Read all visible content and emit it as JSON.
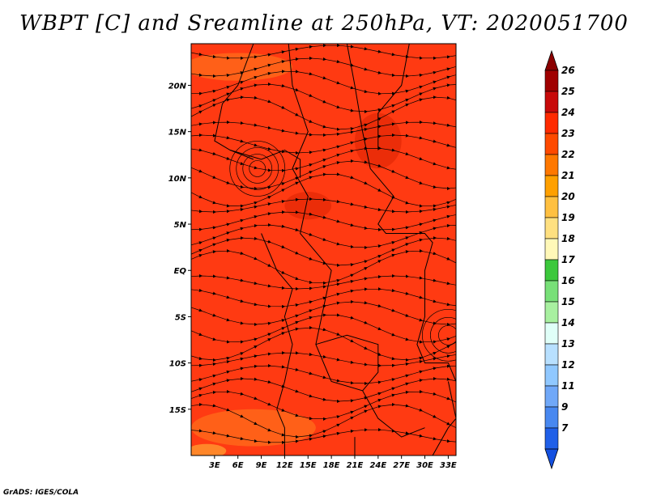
{
  "title": "WBPT [C] and Sreamline at 250hPa, VT: 2020051700",
  "footer": "GrADS: IGES/COLA",
  "map": {
    "lat_range": [
      -20,
      24.5
    ],
    "lon_range": [
      0,
      34
    ],
    "lat_ticks": [
      {
        "value": 20,
        "label": "20N"
      },
      {
        "value": 15,
        "label": "15N"
      },
      {
        "value": 10,
        "label": "10N"
      },
      {
        "value": 5,
        "label": "5N"
      },
      {
        "value": 0,
        "label": "EQ"
      },
      {
        "value": -5,
        "label": "5S"
      },
      {
        "value": -10,
        "label": "10S"
      },
      {
        "value": -15,
        "label": "15S"
      }
    ],
    "lon_ticks": [
      {
        "value": 3,
        "label": "3E"
      },
      {
        "value": 6,
        "label": "6E"
      },
      {
        "value": 9,
        "label": "9E"
      },
      {
        "value": 12,
        "label": "12E"
      },
      {
        "value": 15,
        "label": "15E"
      },
      {
        "value": 18,
        "label": "18E"
      },
      {
        "value": 21,
        "label": "21E"
      },
      {
        "value": 24,
        "label": "24E"
      },
      {
        "value": 27,
        "label": "27E"
      },
      {
        "value": 30,
        "label": "30E"
      },
      {
        "value": 33,
        "label": "33E"
      }
    ],
    "field_colors": {
      "base": "#ff3a12",
      "warm_patch": "#ff6a1a",
      "hot_patch": "#e62a08"
    }
  },
  "colorbar": {
    "labels": [
      "26",
      "25",
      "24",
      "23",
      "22",
      "21",
      "20",
      "19",
      "18",
      "17",
      "16",
      "15",
      "14",
      "13",
      "12",
      "11",
      "9",
      "7"
    ],
    "colors": [
      "#a00000",
      "#c80a0a",
      "#ff2a00",
      "#ff4a00",
      "#ff7800",
      "#ffa000",
      "#ffc040",
      "#ffe080",
      "#fff8b8",
      "#3cc83c",
      "#78e078",
      "#a8f0a0",
      "#e0fff8",
      "#b8e0ff",
      "#90c8ff",
      "#70a8f8",
      "#4888f0",
      "#2060e8"
    ],
    "top_cap": "#8b0000",
    "bottom_cap": "#1450e0"
  }
}
